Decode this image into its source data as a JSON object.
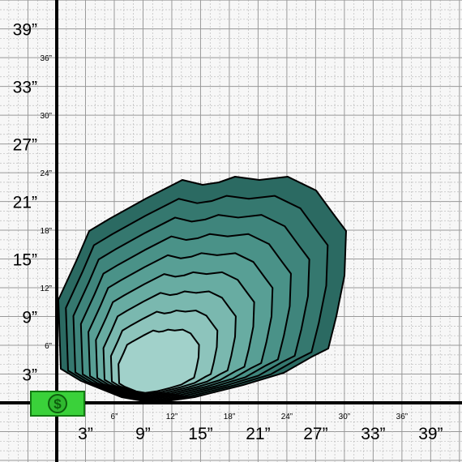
{
  "x_labels_major": [
    "3”",
    "9”",
    "15”",
    "21”",
    "27”",
    "33”",
    "39”"
  ],
  "x_labels_minor": [
    "6”",
    "12”",
    "18”",
    "24”",
    "30”",
    "36”"
  ],
  "y_labels_major": [
    "3”",
    "9”",
    "15”",
    "21”",
    "27”",
    "33”",
    "39”"
  ],
  "y_labels_minor": [
    "6”",
    "12”",
    "18”",
    "24”",
    "30”",
    "36”"
  ],
  "badge": "$"
}
